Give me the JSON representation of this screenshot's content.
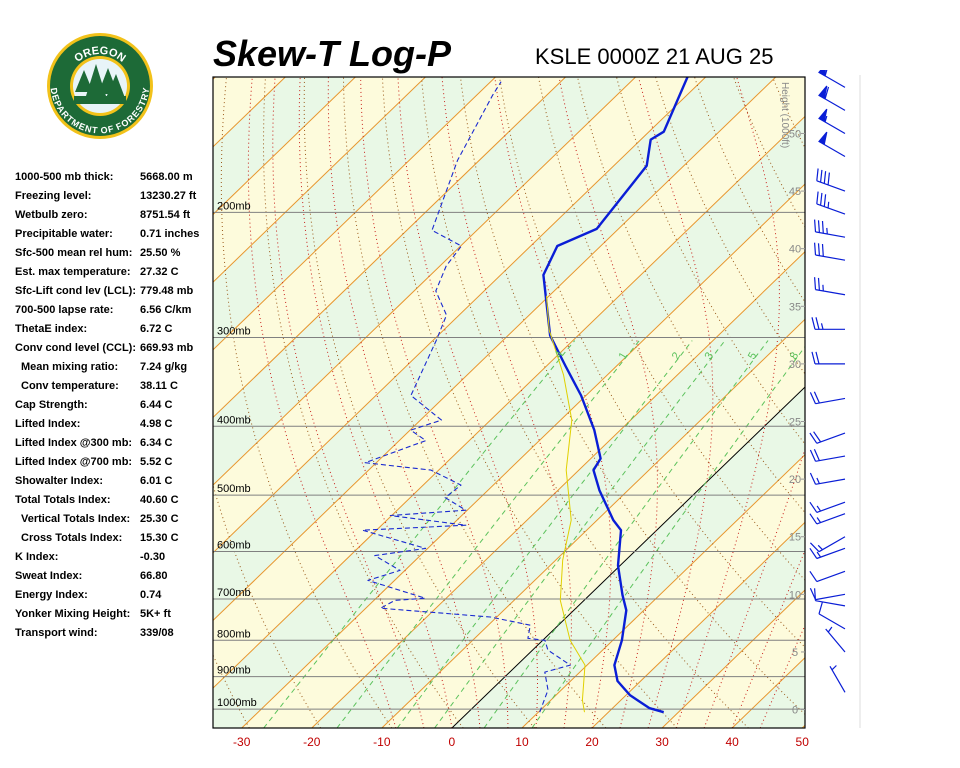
{
  "logo": {
    "top": "OREGON",
    "bottom": "DEPARTMENT OF FORESTRY"
  },
  "indices": [
    {
      "label": "1000-500 mb thick:",
      "value": "5668.00 m"
    },
    {
      "label": "Freezing level:",
      "value": "13230.27 ft"
    },
    {
      "label": "Wetbulb zero:",
      "value": "8751.54 ft"
    },
    {
      "label": "Precipitable water:",
      "value": "0.71 inches"
    },
    {
      "label": "Sfc-500 mean rel hum:",
      "value": "25.50 %"
    },
    {
      "label": "Est. max temperature:",
      "value": "27.32 C"
    },
    {
      "label": "Sfc-Lift cond lev (LCL):",
      "value": "779.48 mb"
    },
    {
      "label": "700-500 lapse rate:",
      "value": "6.56 C/km"
    },
    {
      "label": "ThetaE index:",
      "value": "6.72 C"
    },
    {
      "label": "Conv cond level (CCL):",
      "value": "669.93 mb"
    },
    {
      "label": "Mean mixing ratio:",
      "value": "7.24 g/kg",
      "sub": true
    },
    {
      "label": "Conv temperature:",
      "value": "38.11 C",
      "sub": true
    },
    {
      "label": "Cap Strength:",
      "value": "6.44 C"
    },
    {
      "label": "Lifted Index:",
      "value": "4.98 C"
    },
    {
      "label": "Lifted Index @300 mb:",
      "value": "6.34 C"
    },
    {
      "label": "Lifted Index @700 mb:",
      "value": "5.52 C"
    },
    {
      "label": "Showalter Index:",
      "value": "6.01 C"
    },
    {
      "label": "Total Totals Index:",
      "value": "40.60 C"
    },
    {
      "label": "Vertical Totals Index:",
      "value": "25.30 C",
      "sub": true
    },
    {
      "label": "Cross Totals Index:",
      "value": "15.30 C",
      "sub": true
    },
    {
      "label": "K Index:",
      "value": "-0.30"
    },
    {
      "label": "Sweat Index:",
      "value": "66.80"
    },
    {
      "label": "Energy Index:",
      "value": "0.74"
    },
    {
      "label": "Yonker Mixing Height:",
      "value": "5K+ ft"
    },
    {
      "label": "Transport wind:",
      "value": "339/08"
    }
  ],
  "chart_data": {
    "type": "skewt",
    "title": "Skew-T Log-P",
    "subtitle": "KSLE 0000Z 21 AUG 25",
    "log_y": true,
    "isotherm_angle": 46,
    "xlim": [
      -34.1,
      50.4
    ],
    "xticks": [
      -30,
      -20,
      -10,
      0,
      10,
      20,
      30,
      40,
      50
    ],
    "ylim": [
      1063,
      129
    ],
    "yticks": [
      {
        "value": 200,
        "label": "200mb"
      },
      {
        "value": 300,
        "label": "300mb"
      },
      {
        "value": 400,
        "label": "400mb"
      },
      {
        "value": 500,
        "label": "500mb"
      },
      {
        "value": 600,
        "label": "600mb"
      },
      {
        "value": 700,
        "label": "700mb"
      },
      {
        "value": 800,
        "label": "800mb"
      },
      {
        "value": 900,
        "label": "900mb"
      },
      {
        "value": 1000,
        "label": "1000mb"
      }
    ],
    "y2label": "Height (1000ft)",
    "y2lim": [
      -1.6,
      54.9
    ],
    "y2ticks": [
      0,
      5,
      10,
      15,
      20,
      25,
      30,
      35,
      40,
      45,
      50
    ],
    "mixing_ratios": [
      {
        "value": 0.4,
        "label": ".4"
      },
      1,
      2,
      3,
      5,
      8
    ],
    "series": [
      {
        "color": "#0a1ed6",
        "width": 2.4,
        "dash": false,
        "pressure": [
          1010,
          997,
          956,
          913,
          867,
          800,
          726,
          691,
          628,
          560,
          542,
          492,
          461,
          444,
          405,
          362,
          329,
          298,
          245,
          223,
          211,
          172,
          158,
          154,
          129
        ],
        "temperature": [
          27.9,
          25.3,
          20.6,
          16.7,
          13.9,
          11.3,
          7.5,
          4.7,
          -0.3,
          -5.1,
          -7.7,
          -14.1,
          -17.9,
          -18.6,
          -23.7,
          -30.7,
          -37.3,
          -44.0,
          -53.9,
          -56.2,
          -53.1,
          -55.3,
          -58.6,
          -57.9,
          -62.6
        ]
      },
      {
        "color": "#1a2ad0",
        "width": 1.1,
        "dash": true,
        "pressure": [
          1010,
          940,
          887,
          867,
          826,
          800,
          795,
          762,
          742,
          721,
          703,
          698,
          659,
          638,
          608,
          594,
          560,
          551,
          534,
          525,
          504,
          484,
          461,
          450,
          419,
          405,
          392,
          362,
          303,
          279,
          258,
          238,
          223,
          212,
          169,
          137,
          131
        ],
        "temperature": [
          10.2,
          8.1,
          5.0,
          7.6,
          2.2,
          0.3,
          -2.4,
          -4.0,
          -10.9,
          -27.9,
          -27.0,
          -23.0,
          -33.8,
          -30.7,
          -36.5,
          -30.3,
          -42.0,
          -28.0,
          -40.2,
          -30.2,
          -35.0,
          -34.6,
          -41.1,
          -51.6,
          -46.2,
          -49.9,
          -47.0,
          -55.0,
          -59.5,
          -61.8,
          -66.9,
          -69.1,
          -69.9,
          -76.4,
          -83.1,
          -87.7,
          -88.5
        ]
      },
      {
        "color": "#e0d000",
        "width": 1,
        "dash": false,
        "pressure": [
          1010,
          971,
          867,
          800,
          703,
          617,
          542,
          461,
          392,
          339,
          293,
          262
        ],
        "temperature": [
          16.6,
          14.5,
          9.7,
          3.9,
          -3.4,
          -9.0,
          -13.7,
          -21.8,
          -28.4,
          -36.2,
          -44.9,
          -50.4
        ]
      }
    ],
    "winds": {
      "height": [
        1.5,
        5,
        7,
        9,
        10,
        12,
        14,
        15,
        17,
        18,
        20,
        22,
        24,
        27,
        30,
        33,
        36,
        39,
        41,
        43,
        45,
        48,
        50,
        52,
        54
      ],
      "direction": [
        330,
        320,
        300,
        280,
        260,
        250,
        250,
        240,
        250,
        250,
        260,
        260,
        250,
        260,
        270,
        270,
        280,
        280,
        280,
        290,
        290,
        300,
        300,
        300,
        300
      ],
      "speed": [
        5,
        5,
        10,
        10,
        10,
        10,
        15,
        15,
        15,
        15,
        15,
        20,
        20,
        20,
        20,
        25,
        25,
        30,
        35,
        35,
        40,
        50,
        55,
        60,
        60
      ],
      "color": "#0a1ed6"
    }
  }
}
